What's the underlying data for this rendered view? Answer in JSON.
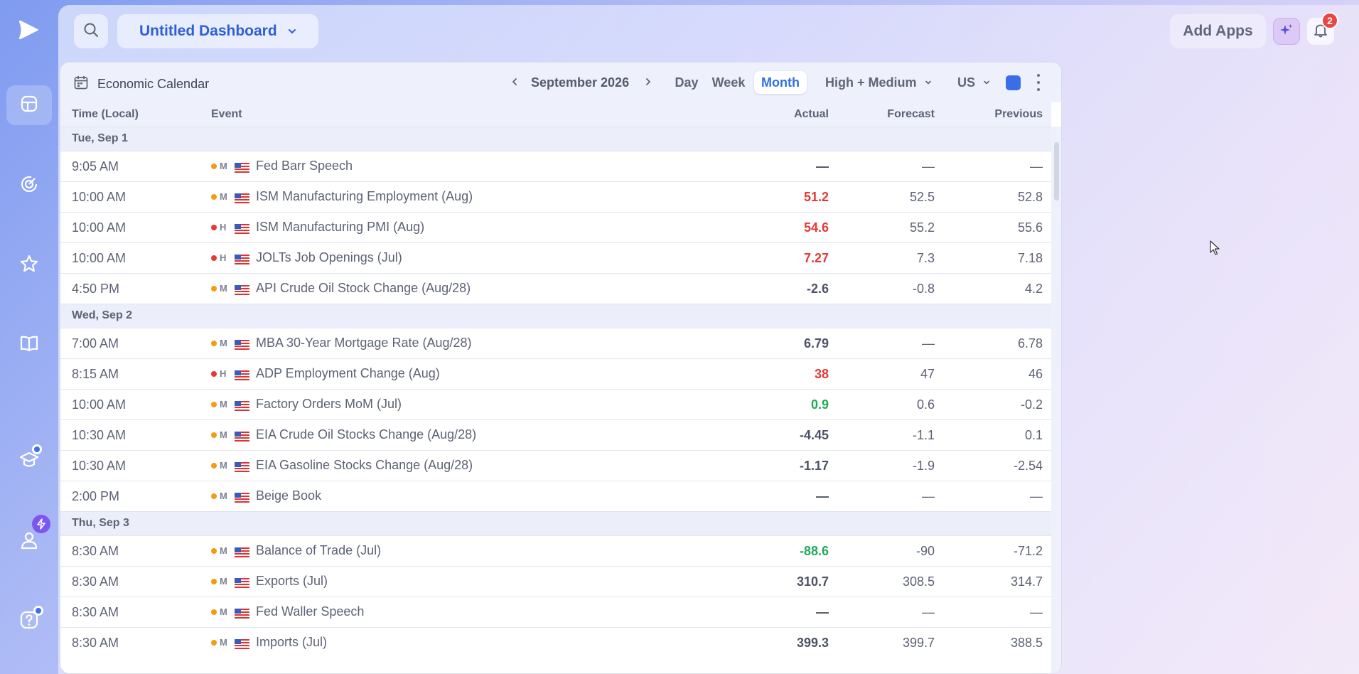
{
  "topbar": {
    "dashboard_title": "Untitled Dashboard",
    "add_apps_label": "Add Apps",
    "notification_count": "2"
  },
  "rail": {
    "items": [
      "logo-icon",
      "dashboard-icon",
      "radar-icon",
      "star-icon",
      "book-icon",
      "graduation-icon",
      "user-icon",
      "help-icon"
    ]
  },
  "calendar": {
    "title": "Economic Calendar",
    "month_label": "September 2026",
    "views": [
      "Day",
      "Week",
      "Month"
    ],
    "active_view": "Month",
    "importance_filter": "High + Medium",
    "country_filter": "US",
    "accent_color": "#3a6ee8",
    "columns": {
      "time": "Time (Local)",
      "event": "Event",
      "actual": "Actual",
      "forecast": "Forecast",
      "previous": "Previous"
    },
    "days": [
      {
        "label": "Tue, Sep 1",
        "events": [
          {
            "time": "9:05 AM",
            "importance": "M",
            "name": "Fed Barr Speech",
            "actual": "—",
            "actual_tone": "neutral",
            "forecast": "—",
            "previous": "—"
          },
          {
            "time": "10:00 AM",
            "importance": "M",
            "name": "ISM Manufacturing Employment (Aug)",
            "actual": "51.2",
            "actual_tone": "red",
            "forecast": "52.5",
            "previous": "52.8"
          },
          {
            "time": "10:00 AM",
            "importance": "H",
            "name": "ISM Manufacturing PMI (Aug)",
            "actual": "54.6",
            "actual_tone": "red",
            "forecast": "55.2",
            "previous": "55.6"
          },
          {
            "time": "10:00 AM",
            "importance": "H",
            "name": "JOLTs Job Openings (Jul)",
            "actual": "7.27",
            "actual_tone": "red",
            "forecast": "7.3",
            "previous": "7.18"
          },
          {
            "time": "4:50 PM",
            "importance": "M",
            "name": "API Crude Oil Stock Change (Aug/28)",
            "actual": "-2.6",
            "actual_tone": "neutral",
            "forecast": "-0.8",
            "previous": "4.2"
          }
        ]
      },
      {
        "label": "Wed, Sep 2",
        "events": [
          {
            "time": "7:00 AM",
            "importance": "M",
            "name": "MBA 30-Year Mortgage Rate (Aug/28)",
            "actual": "6.79",
            "actual_tone": "neutral",
            "forecast": "—",
            "previous": "6.78"
          },
          {
            "time": "8:15 AM",
            "importance": "H",
            "name": "ADP Employment Change (Aug)",
            "actual": "38",
            "actual_tone": "red",
            "forecast": "47",
            "previous": "46"
          },
          {
            "time": "10:00 AM",
            "importance": "M",
            "name": "Factory Orders MoM (Jul)",
            "actual": "0.9",
            "actual_tone": "green",
            "forecast": "0.6",
            "previous": "-0.2"
          },
          {
            "time": "10:30 AM",
            "importance": "M",
            "name": "EIA Crude Oil Stocks Change (Aug/28)",
            "actual": "-4.45",
            "actual_tone": "neutral",
            "forecast": "-1.1",
            "previous": "0.1"
          },
          {
            "time": "10:30 AM",
            "importance": "M",
            "name": "EIA Gasoline Stocks Change (Aug/28)",
            "actual": "-1.17",
            "actual_tone": "neutral",
            "forecast": "-1.9",
            "previous": "-2.54"
          },
          {
            "time": "2:00 PM",
            "importance": "M",
            "name": "Beige Book",
            "actual": "—",
            "actual_tone": "neutral",
            "forecast": "—",
            "previous": "—"
          }
        ]
      },
      {
        "label": "Thu, Sep 3",
        "events": [
          {
            "time": "8:30 AM",
            "importance": "M",
            "name": "Balance of Trade (Jul)",
            "actual": "-88.6",
            "actual_tone": "green",
            "forecast": "-90",
            "previous": "-71.2"
          },
          {
            "time": "8:30 AM",
            "importance": "M",
            "name": "Exports (Jul)",
            "actual": "310.7",
            "actual_tone": "neutral",
            "forecast": "308.5",
            "previous": "314.7"
          },
          {
            "time": "8:30 AM",
            "importance": "M",
            "name": "Fed Waller Speech",
            "actual": "—",
            "actual_tone": "neutral",
            "forecast": "—",
            "previous": "—"
          },
          {
            "time": "8:30 AM",
            "importance": "M",
            "name": "Imports (Jul)",
            "actual": "399.3",
            "actual_tone": "neutral",
            "forecast": "399.7",
            "previous": "388.5"
          }
        ]
      }
    ]
  }
}
